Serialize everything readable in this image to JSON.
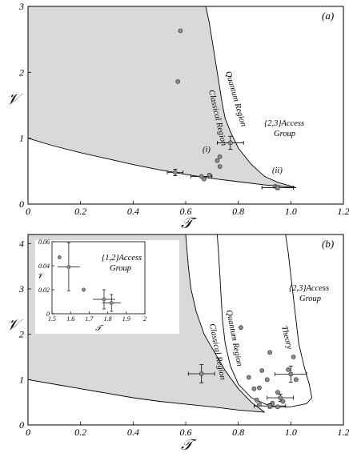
{
  "chart_data": [
    {
      "panel": "(a)",
      "type": "scatter",
      "xlabel": "𝒯",
      "ylabel": "𝒱",
      "xlim": [
        0,
        1.2
      ],
      "ylim": [
        0,
        3
      ],
      "xticks": [
        "0",
        "0.2",
        "0.4",
        "0.6",
        "0.8",
        "1.0",
        "1.2"
      ],
      "yticks": [
        "0",
        "1",
        "2",
        "3"
      ],
      "regions": {
        "classical": "Classical Region",
        "quantum": "Quantum Region",
        "group": "{2,3}Access\nGroup"
      },
      "markers": [
        "(i)",
        "(ii)"
      ],
      "lower_boundary": [
        [
          0,
          1.0
        ],
        [
          0.1,
          0.88
        ],
        [
          0.2,
          0.78
        ],
        [
          0.3,
          0.69
        ],
        [
          0.4,
          0.6
        ],
        [
          0.5,
          0.52
        ],
        [
          0.6,
          0.45
        ],
        [
          0.7,
          0.39
        ],
        [
          0.8,
          0.34
        ],
        [
          0.9,
          0.29
        ],
        [
          1.02,
          0.25
        ]
      ],
      "upper_boundary": [
        [
          0.676,
          3.0
        ],
        [
          0.69,
          2.75
        ],
        [
          0.7,
          2.5
        ],
        [
          0.71,
          2.25
        ],
        [
          0.72,
          2.0
        ],
        [
          0.73,
          1.75
        ],
        [
          0.74,
          1.5
        ],
        [
          0.75,
          1.3
        ],
        [
          0.77,
          1.1
        ],
        [
          0.8,
          0.85
        ],
        [
          0.85,
          0.6
        ],
        [
          0.9,
          0.42
        ],
        [
          0.95,
          0.33
        ],
        [
          1.02,
          0.25
        ]
      ],
      "points": [
        {
          "x": 0.58,
          "y": 2.63
        },
        {
          "x": 0.57,
          "y": 1.86
        },
        {
          "x": 0.77,
          "y": 0.93,
          "xerr": 0.05,
          "yerr": 0.1
        },
        {
          "x": 0.73,
          "y": 0.72
        },
        {
          "x": 0.72,
          "y": 0.66
        },
        {
          "x": 0.73,
          "y": 0.57
        },
        {
          "x": 0.56,
          "y": 0.48,
          "xerr": 0.03,
          "yerr": 0.05
        },
        {
          "x": 0.66,
          "y": 0.42,
          "xerr": 0.04
        },
        {
          "x": 0.69,
          "y": 0.44
        },
        {
          "x": 0.67,
          "y": 0.38
        },
        {
          "x": 0.94,
          "y": 0.27
        },
        {
          "x": 0.95,
          "y": 0.25,
          "xerr": 0.06,
          "yerr": 0.03
        }
      ]
    },
    {
      "panel": "(b)",
      "type": "scatter",
      "xlabel": "𝒯",
      "ylabel": "𝒱",
      "xlim": [
        0,
        1.2
      ],
      "ylim": [
        0,
        4.2
      ],
      "xticks": [
        "0",
        "0.2",
        "0.4",
        "0.6",
        "0.8",
        "1.0",
        "1.2"
      ],
      "yticks": [
        "0",
        "1",
        "2",
        "3",
        "4"
      ],
      "regions": {
        "classical": "Classical Region",
        "quantum": "Quantum Region",
        "theory": "Theory",
        "group": "{2,3}Access\nGroup"
      },
      "lower_boundary": [
        [
          0,
          1.0
        ],
        [
          0.1,
          0.9
        ],
        [
          0.2,
          0.8
        ],
        [
          0.3,
          0.7
        ],
        [
          0.4,
          0.6
        ],
        [
          0.5,
          0.52
        ],
        [
          0.6,
          0.46
        ],
        [
          0.7,
          0.4
        ],
        [
          0.8,
          0.33
        ],
        [
          0.9,
          0.28
        ]
      ],
      "upper_boundary": [
        [
          0.6,
          4.2
        ],
        [
          0.61,
          3.5
        ],
        [
          0.62,
          3.0
        ],
        [
          0.64,
          2.5
        ],
        [
          0.67,
          2.0
        ],
        [
          0.71,
          1.6
        ],
        [
          0.75,
          1.2
        ],
        [
          0.8,
          0.8
        ],
        [
          0.85,
          0.5
        ],
        [
          0.9,
          0.28
        ]
      ],
      "theory_outer": [
        [
          0.98,
          4.2
        ],
        [
          0.99,
          3.8
        ],
        [
          1.0,
          3.3
        ],
        [
          1.01,
          2.8
        ],
        [
          1.02,
          2.3
        ],
        [
          1.03,
          1.8
        ],
        [
          1.05,
          1.3
        ],
        [
          1.07,
          0.9
        ],
        [
          1.08,
          0.6
        ],
        [
          1.06,
          0.47
        ],
        [
          1.0,
          0.4
        ],
        [
          0.93,
          0.4
        ]
      ],
      "theory_inner": [
        [
          0.72,
          4.2
        ],
        [
          0.725,
          3.8
        ],
        [
          0.73,
          3.3
        ],
        [
          0.735,
          2.8
        ],
        [
          0.74,
          2.3
        ],
        [
          0.75,
          1.8
        ],
        [
          0.77,
          1.3
        ],
        [
          0.8,
          0.9
        ],
        [
          0.85,
          0.6
        ],
        [
          0.9,
          0.47
        ],
        [
          0.93,
          0.4
        ]
      ],
      "points": [
        {
          "x": 0.66,
          "y": 1.13,
          "xerr": 0.05,
          "yerr": 0.2
        },
        {
          "x": 0.81,
          "y": 2.15
        },
        {
          "x": 0.92,
          "y": 1.6
        },
        {
          "x": 1.01,
          "y": 1.5
        },
        {
          "x": 0.84,
          "y": 1.05
        },
        {
          "x": 0.89,
          "y": 1.2
        },
        {
          "x": 0.91,
          "y": 1.0
        },
        {
          "x": 0.99,
          "y": 1.22
        },
        {
          "x": 1.0,
          "y": 1.12,
          "xerr": 0.06,
          "yerr": 0.18
        },
        {
          "x": 1.02,
          "y": 1.0
        },
        {
          "x": 0.86,
          "y": 0.8
        },
        {
          "x": 0.88,
          "y": 0.82
        },
        {
          "x": 0.95,
          "y": 0.72
        },
        {
          "x": 0.96,
          "y": 0.6,
          "xerr": 0.05,
          "yerr": 0.08
        },
        {
          "x": 0.97,
          "y": 0.52
        },
        {
          "x": 0.93,
          "y": 0.48
        },
        {
          "x": 0.92,
          "y": 0.42,
          "xerr": 0.06,
          "yerr": 0.05
        },
        {
          "x": 0.87,
          "y": 0.55
        },
        {
          "x": 0.88,
          "y": 0.45
        },
        {
          "x": 0.95,
          "y": 0.4
        }
      ],
      "inset": {
        "xlabel": "𝒯",
        "ylabel": "𝒱",
        "xlim": [
          1.5,
          2.0
        ],
        "ylim": [
          0,
          0.06
        ],
        "xticks": [
          "1.5",
          "1.6",
          "1.7",
          "1.8",
          "1.9",
          "2"
        ],
        "yticks": [
          "0",
          "0.02",
          "0.04",
          "0.06"
        ],
        "group": "{1,2}Access\nGroup",
        "points": [
          {
            "x": 1.54,
            "y": 0.047
          },
          {
            "x": 1.59,
            "y": 0.039,
            "xerr": 0.06,
            "yerr": 0.02
          },
          {
            "x": 1.67,
            "y": 0.02
          },
          {
            "x": 1.78,
            "y": 0.012,
            "xerr": 0.06,
            "yerr": 0.008
          },
          {
            "x": 1.82,
            "y": 0.009,
            "xerr": 0.05,
            "yerr": 0.007
          }
        ]
      }
    }
  ]
}
